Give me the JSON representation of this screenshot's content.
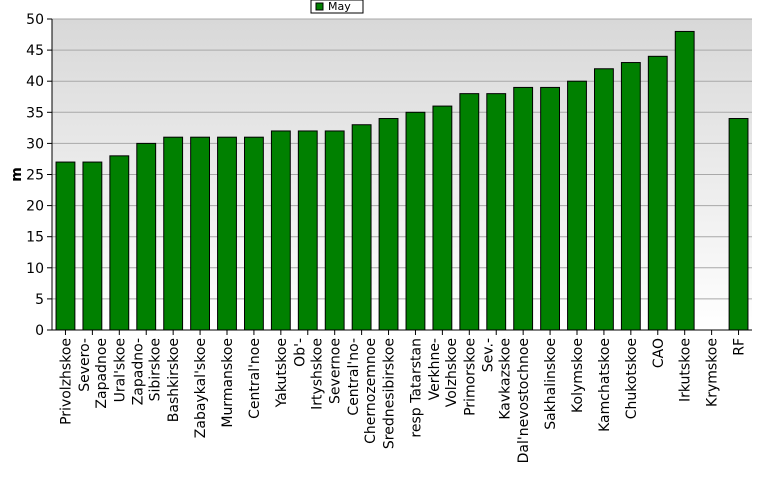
{
  "chart_data": {
    "type": "bar",
    "title": "",
    "xlabel": "",
    "ylabel": "m",
    "ylim": [
      0,
      50
    ],
    "yticks": [
      0,
      5,
      10,
      15,
      20,
      25,
      30,
      35,
      40,
      45,
      50
    ],
    "grid": true,
    "legend_position": "top-center",
    "categories": [
      "Privolzhskoe",
      "Severo-\nZapadnoe",
      "Ural'skoe",
      "Zapadno-\nSibirskoe",
      "Bashkirskoe",
      "Zabaykal'skoe",
      "Murmanskoe",
      "Central'noe",
      "Yakutskoe",
      "Ob'-\nIrtyshskoe",
      "Severnoe",
      "Central'no-\nChernozemnoe",
      "Srednesibirskoe",
      "resp Tatarstan",
      "Verkhne-\nVolzhskoe",
      "Primorskoe",
      "Sev.-\nKavkazskoe",
      "Dal'nevostochnoe",
      "Sakhalinskoe",
      "Kolymskoe",
      "Kamchatskoe",
      "Chukotskoe",
      "CAO",
      "Irkutskoe",
      "Krymskoe",
      "RF"
    ],
    "series": [
      {
        "name": "May",
        "color": "#008000",
        "values": [
          27,
          27,
          28,
          30,
          31,
          31,
          31,
          31,
          32,
          32,
          32,
          33,
          34,
          35,
          36,
          38,
          38,
          39,
          39,
          40,
          42,
          43,
          44,
          48,
          null,
          34
        ]
      }
    ]
  },
  "colors": {
    "plot_bg_top": "#d8d8d8",
    "plot_bg_bottom": "#ffffff",
    "grid": "#a8a8a8",
    "bar": "#008000",
    "bar_edge": "#000000"
  }
}
